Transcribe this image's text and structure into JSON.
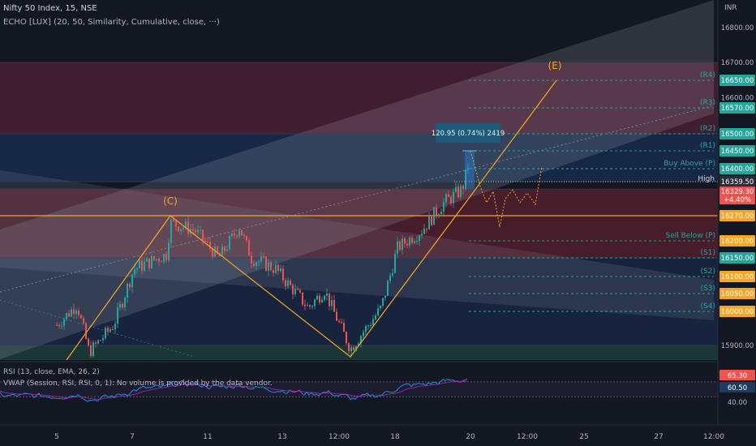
{
  "header": {
    "symbol_title": "Nifty 50 Index, 15, NSE",
    "indicator": "ECHO [LUX] (20, 50, Similarity, Cumulative, close, ···)",
    "currency": "INR"
  },
  "rsi_panel": {
    "title": "RSI (13, close, EMA, 26, 2)",
    "vwap_title": "VWAP (Session, RSI, RSI, 0, 1): No volume is provided by the data vendor.",
    "levels": [
      "65.30",
      "60.50",
      "40.00"
    ]
  },
  "annotations": {
    "wave_c": "(C)",
    "wave_e": "(E)",
    "measure": "120.95 (0.74%) 2419",
    "high": "High"
  },
  "pivot_labels": [
    "(R4)",
    "(R3)",
    "(R2)",
    "(R1)",
    "Buy Above (P)",
    "Sell Below (P)",
    "(S1)",
    "(S2)",
    "(S3)",
    "(S4)"
  ],
  "colors": {
    "background": "#131722",
    "up": "#26a69a",
    "down": "#ef5350",
    "wave_line": "#f5a623",
    "projection": "#f5a623",
    "rsi": "#2196f3",
    "rsi_signal": "#9c27b0"
  },
  "chart_data": [
    {
      "type": "candlestick",
      "ylim": [
        15850,
        16850
      ],
      "y_ticks": [
        "15900.00",
        "16000.00",
        "16050.00",
        "16100.00",
        "16150.00",
        "16200.00",
        "16270.00",
        "16359.50",
        "16400.00",
        "16450.00",
        "16500.00",
        "16570.00",
        "16600.00",
        "16650.00",
        "16700.00",
        "16800.00"
      ],
      "x_tick_labels": [
        "5",
        "7",
        "11",
        "13",
        "12:00",
        "18",
        "20",
        "12:00",
        "25",
        "27",
        "12:00"
      ],
      "last_price": "16329.30",
      "last_change": "+4.40%",
      "pivots": [
        {
          "label": "(R4)",
          "value": 16650
        },
        {
          "label": "(R3)",
          "value": 16570
        },
        {
          "label": "(R2)",
          "value": 16500
        },
        {
          "label": "(R1)",
          "value": 16450
        },
        {
          "label": "Buy Above (P)",
          "value": 16400
        },
        {
          "label": "Sell Below (P)",
          "value": 16200
        },
        {
          "label": "(S1)",
          "value": 16150
        },
        {
          "label": "(S2)",
          "value": 16100
        },
        {
          "label": "(S3)",
          "value": 16050
        },
        {
          "label": "(S4)",
          "value": 16000
        }
      ],
      "high_line": 16359.5,
      "wave_level": 16270
    },
    {
      "type": "line",
      "title": "RSI (13, close, EMA, 26, 2)",
      "levels": [
        65.3,
        60.5,
        40.0
      ]
    }
  ]
}
